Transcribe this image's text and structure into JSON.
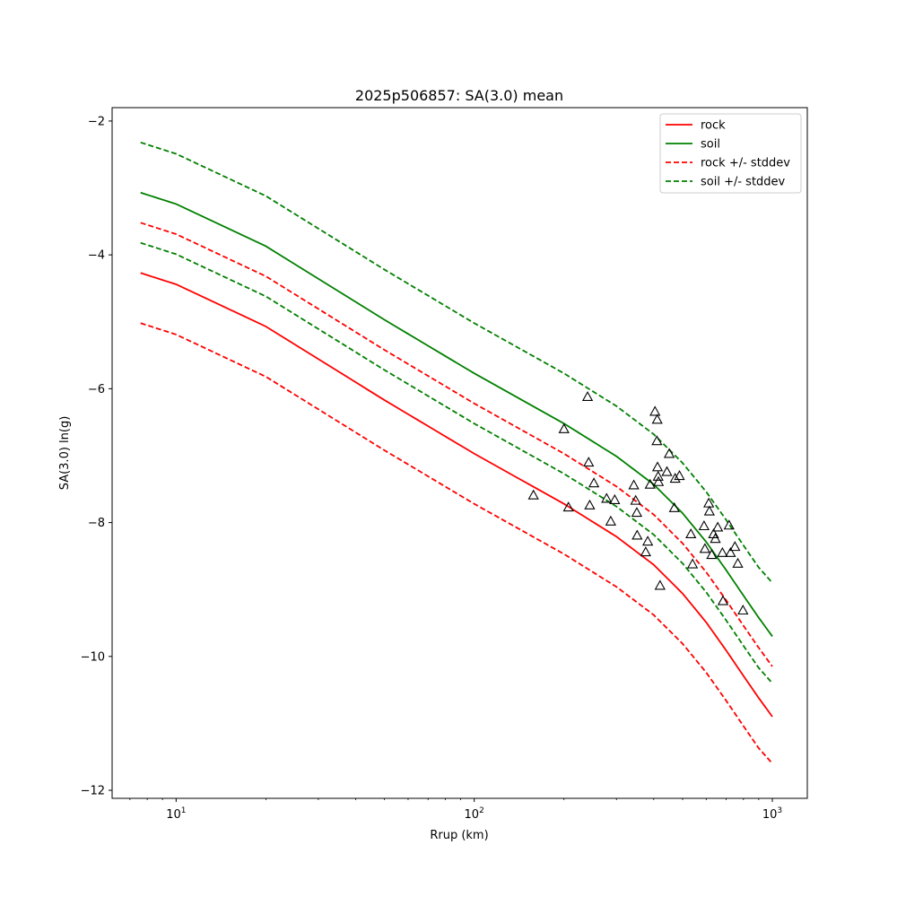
{
  "chart_data": {
    "type": "line",
    "title": "2025p506857: SA(3.0) mean",
    "xlabel": "Rrup (km)",
    "ylabel": "SA(3.0) ln(g)",
    "xscale": "log",
    "xlim": [
      6.1,
      1310
    ],
    "ylim": [
      -12.12,
      -1.8
    ],
    "x_ticks": [
      {
        "value": 10,
        "base": "10",
        "exp": "1"
      },
      {
        "value": 100,
        "base": "10",
        "exp": "2"
      },
      {
        "value": 1000,
        "base": "10",
        "exp": "3"
      }
    ],
    "y_ticks": [
      {
        "value": -2,
        "label": "−2"
      },
      {
        "value": -4,
        "label": "−4"
      },
      {
        "value": -6,
        "label": "−6"
      },
      {
        "value": -8,
        "label": "−8"
      },
      {
        "value": -10,
        "label": "−10"
      },
      {
        "value": -12,
        "label": "−12"
      }
    ],
    "grid": false,
    "legend_position": "top-right",
    "x": [
      7.6,
      10,
      20,
      50,
      100,
      200,
      300,
      400,
      500,
      600,
      700,
      800,
      900,
      1000
    ],
    "series": [
      {
        "name": "rock",
        "color": "#ff0000",
        "style": "solid",
        "values": [
          -4.27,
          -4.44,
          -5.07,
          -6.17,
          -6.97,
          -7.72,
          -8.21,
          -8.63,
          -9.06,
          -9.49,
          -9.91,
          -10.29,
          -10.62,
          -10.9
        ]
      },
      {
        "name": "soil",
        "color": "#008000",
        "style": "solid",
        "values": [
          -3.07,
          -3.24,
          -3.87,
          -4.97,
          -5.77,
          -6.52,
          -7.01,
          -7.43,
          -7.86,
          -8.29,
          -8.71,
          -9.09,
          -9.42,
          -9.7
        ]
      },
      {
        "name": "rock +/- stddev",
        "color": "#ff0000",
        "style": "dashed",
        "values": [
          -3.52,
          -3.69,
          -4.32,
          -5.42,
          -6.22,
          -6.97,
          -7.46,
          -7.88,
          -8.31,
          -8.74,
          -9.16,
          -9.54,
          -9.87,
          -10.15
        ]
      },
      {
        "name": "",
        "color": "#ff0000",
        "style": "dashed",
        "values": [
          -5.02,
          -5.19,
          -5.82,
          -6.92,
          -7.72,
          -8.47,
          -8.96,
          -9.38,
          -9.81,
          -10.24,
          -10.66,
          -11.04,
          -11.37,
          -11.6
        ]
      },
      {
        "name": "soil +/- stddev",
        "color": "#008000",
        "style": "dashed",
        "values": [
          -2.32,
          -2.49,
          -3.12,
          -4.22,
          -5.02,
          -5.77,
          -6.26,
          -6.68,
          -7.11,
          -7.54,
          -7.96,
          -8.34,
          -8.67,
          -8.9
        ]
      },
      {
        "name": "",
        "color": "#008000",
        "style": "dashed",
        "values": [
          -3.82,
          -3.99,
          -4.62,
          -5.72,
          -6.52,
          -7.27,
          -7.76,
          -8.18,
          -8.61,
          -9.04,
          -9.46,
          -9.84,
          -10.17,
          -10.4
        ]
      }
    ],
    "legend": [
      {
        "label": "rock",
        "color": "#ff0000",
        "style": "solid"
      },
      {
        "label": "soil",
        "color": "#008000",
        "style": "solid"
      },
      {
        "label": "rock +/- stddev",
        "color": "#ff0000",
        "style": "dashed"
      },
      {
        "label": "soil +/- stddev",
        "color": "#008000",
        "style": "dashed"
      }
    ],
    "observations": {
      "marker": "triangle",
      "color": "#000000",
      "points": [
        [
          158,
          -7.59
        ],
        [
          200,
          -6.6
        ],
        [
          207,
          -7.77
        ],
        [
          240,
          -6.12
        ],
        [
          242,
          -7.1
        ],
        [
          244,
          -7.74
        ],
        [
          252,
          -7.41
        ],
        [
          278,
          -7.64
        ],
        [
          287,
          -7.98
        ],
        [
          296,
          -7.66
        ],
        [
          343,
          -7.44
        ],
        [
          348,
          -7.67
        ],
        [
          351,
          -7.85
        ],
        [
          352,
          -8.19
        ],
        [
          376,
          -8.44
        ],
        [
          382,
          -8.28
        ],
        [
          389,
          -7.43
        ],
        [
          404,
          -6.34
        ],
        [
          410,
          -6.78
        ],
        [
          411,
          -6.46
        ],
        [
          412,
          -7.17
        ],
        [
          414,
          -7.31
        ],
        [
          415,
          -7.39
        ],
        [
          420,
          -8.94
        ],
        [
          443,
          -7.24
        ],
        [
          451,
          -6.97
        ],
        [
          469,
          -7.78
        ],
        [
          472,
          -7.34
        ],
        [
          488,
          -7.3
        ],
        [
          533,
          -8.17
        ],
        [
          540,
          -8.62
        ],
        [
          590,
          -8.05
        ],
        [
          594,
          -8.39
        ],
        [
          612,
          -7.71
        ],
        [
          615,
          -7.83
        ],
        [
          626,
          -8.48
        ],
        [
          635,
          -8.17
        ],
        [
          644,
          -8.24
        ],
        [
          656,
          -8.07
        ],
        [
          680,
          -8.45
        ],
        [
          683,
          -9.17
        ],
        [
          716,
          -8.04
        ],
        [
          724,
          -8.45
        ],
        [
          749,
          -8.36
        ],
        [
          766,
          -8.61
        ],
        [
          797,
          -9.31
        ]
      ]
    }
  }
}
